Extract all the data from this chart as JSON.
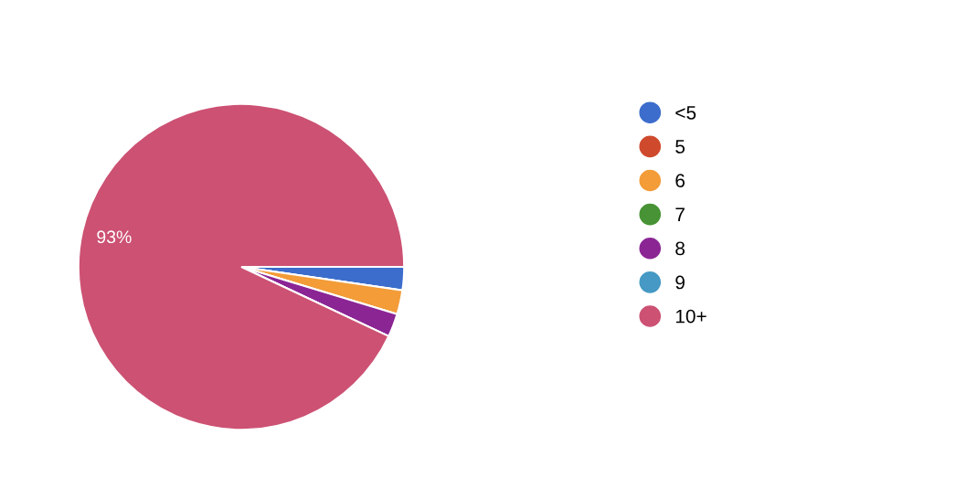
{
  "chart_data": {
    "type": "pie",
    "categories": [
      "<5",
      "5",
      "6",
      "7",
      "8",
      "9",
      "10+"
    ],
    "values": [
      2.3,
      0,
      2.4,
      0,
      2.3,
      0,
      93
    ],
    "colors": [
      "#3c6dcc",
      "#cf4a2d",
      "#f39c38",
      "#479335",
      "#8b2594",
      "#4599c4",
      "#cc5173"
    ],
    "value_labels": [
      null,
      null,
      null,
      null,
      null,
      null,
      "93%"
    ],
    "legend": "right"
  }
}
